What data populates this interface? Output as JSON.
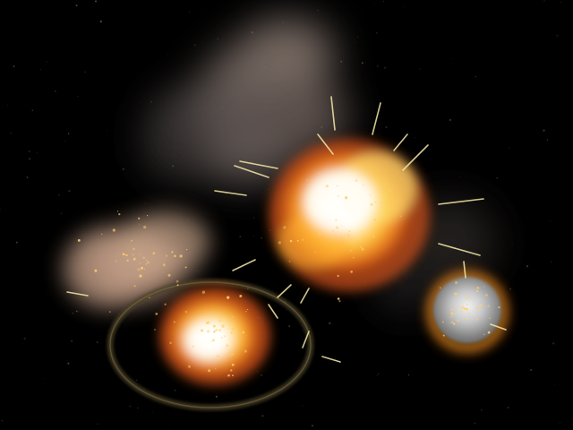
{
  "scene": {
    "background_color": "#000000",
    "smoke_color": "#8a7a72",
    "fire_core_color": "#fffbe0",
    "fire_mid_color": "#ffc23a",
    "fire_edge_color": "#e0601a",
    "spark_color": "#f6e9a6",
    "shockwave_color": "#5a4c2c",
    "debris_color": "#ffcf6a"
  }
}
